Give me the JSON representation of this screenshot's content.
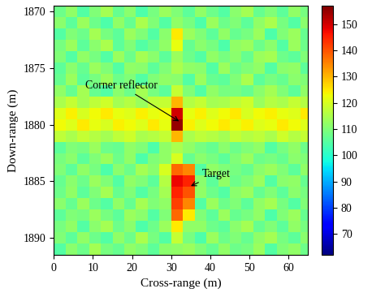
{
  "chart_data": {
    "type": "heatmap",
    "x_label": "Cross-range (m)",
    "y_label": "Down-range (m)",
    "xlim": [
      0,
      65
    ],
    "xticks": [
      0,
      10,
      20,
      30,
      40,
      50,
      60
    ],
    "ylim": [
      1891.5,
      1869.5
    ],
    "yticks": [
      1870,
      1875,
      1880,
      1885,
      1890
    ],
    "x_edges": [
      0,
      3,
      6,
      9,
      12,
      15,
      18,
      21,
      24,
      27,
      30,
      33,
      36,
      39,
      42,
      45,
      48,
      51,
      54,
      57,
      60,
      63,
      66
    ],
    "y_edges": [
      1869.5,
      1870.5,
      1871.5,
      1872.5,
      1873.5,
      1874.5,
      1875.5,
      1876.5,
      1877.5,
      1878.5,
      1879.5,
      1880.5,
      1881.5,
      1882.5,
      1883.5,
      1884.5,
      1885.5,
      1886.5,
      1887.5,
      1888.5,
      1889.5,
      1890.5,
      1891.5
    ],
    "cells": [
      [
        108,
        112,
        105,
        110,
        114,
        107,
        111,
        104,
        109,
        113,
        110,
        106,
        112,
        108,
        105,
        111,
        114,
        107,
        110,
        106,
        112,
        109
      ],
      [
        111,
        106,
        113,
        108,
        104,
        112,
        107,
        115,
        110,
        105,
        112,
        109,
        104,
        113,
        108,
        110,
        106,
        112,
        115,
        109,
        105,
        111
      ],
      [
        105,
        110,
        108,
        114,
        109,
        106,
        113,
        110,
        105,
        111,
        125,
        113,
        110,
        106,
        112,
        107,
        109,
        113,
        104,
        110,
        113,
        107
      ],
      [
        109,
        113,
        106,
        111,
        115,
        106,
        110,
        105,
        108,
        112,
        122,
        107,
        111,
        109,
        104,
        112,
        113,
        108,
        111,
        105,
        113,
        108
      ],
      [
        110,
        105,
        112,
        109,
        105,
        113,
        108,
        114,
        111,
        106,
        113,
        108,
        105,
        112,
        109,
        111,
        107,
        113,
        114,
        108,
        106,
        110
      ],
      [
        106,
        111,
        107,
        113,
        110,
        105,
        112,
        111,
        106,
        110,
        115,
        112,
        111,
        105,
        113,
        108,
        110,
        112,
        105,
        111,
        112,
        106
      ],
      [
        107,
        113,
        106,
        109,
        113,
        108,
        110,
        105,
        110,
        112,
        111,
        105,
        113,
        107,
        106,
        110,
        115,
        106,
        109,
        107,
        111,
        110
      ],
      [
        112,
        107,
        114,
        107,
        105,
        111,
        108,
        114,
        109,
        106,
        118,
        110,
        105,
        112,
        109,
        109,
        107,
        111,
        114,
        110,
        106,
        112
      ],
      [
        115,
        118,
        114,
        117,
        119,
        114,
        116,
        113,
        117,
        118,
        130,
        116,
        118,
        114,
        115,
        117,
        119,
        113,
        116,
        115,
        118,
        116
      ],
      [
        121,
        124,
        120,
        123,
        125,
        122,
        121,
        124,
        122,
        123,
        150,
        122,
        124,
        121,
        123,
        125,
        120,
        123,
        124,
        122,
        121,
        125
      ],
      [
        123,
        121,
        125,
        122,
        120,
        124,
        123,
        121,
        125,
        122,
        155,
        124,
        121,
        123,
        125,
        122,
        124,
        121,
        122,
        125,
        123,
        121
      ],
      [
        117,
        115,
        118,
        116,
        114,
        117,
        119,
        115,
        116,
        118,
        130,
        115,
        117,
        116,
        114,
        118,
        116,
        117,
        115,
        119,
        116,
        118
      ],
      [
        106,
        110,
        109,
        113,
        108,
        107,
        112,
        110,
        104,
        112,
        115,
        112,
        109,
        107,
        111,
        108,
        110,
        112,
        105,
        109,
        112,
        108
      ],
      [
        109,
        111,
        106,
        110,
        113,
        108,
        112,
        104,
        110,
        112,
        120,
        107,
        111,
        109,
        106,
        110,
        113,
        108,
        109,
        107,
        111,
        110
      ],
      [
        110,
        106,
        112,
        109,
        104,
        111,
        108,
        114,
        111,
        120,
        138,
        135,
        105,
        112,
        110,
        109,
        107,
        111,
        113,
        110,
        106,
        112
      ],
      [
        107,
        111,
        108,
        113,
        110,
        105,
        112,
        110,
        106,
        116,
        148,
        145,
        111,
        106,
        112,
        108,
        110,
        113,
        105,
        111,
        112,
        107
      ],
      [
        108,
        112,
        106,
        110,
        114,
        107,
        110,
        105,
        109,
        114,
        145,
        140,
        112,
        108,
        105,
        111,
        113,
        107,
        110,
        106,
        111,
        109
      ],
      [
        111,
        107,
        113,
        108,
        105,
        112,
        107,
        114,
        110,
        112,
        142,
        135,
        105,
        113,
        108,
        110,
        106,
        112,
        114,
        109,
        105,
        110
      ],
      [
        106,
        110,
        109,
        113,
        109,
        106,
        113,
        111,
        105,
        110,
        138,
        125,
        110,
        106,
        113,
        107,
        109,
        112,
        104,
        110,
        113,
        107
      ],
      [
        109,
        112,
        105,
        111,
        114,
        108,
        111,
        104,
        108,
        113,
        125,
        112,
        112,
        108,
        106,
        111,
        114,
        107,
        110,
        106,
        112,
        109
      ],
      [
        110,
        106,
        112,
        108,
        105,
        112,
        108,
        115,
        109,
        105,
        118,
        109,
        104,
        113,
        108,
        110,
        107,
        112,
        114,
        109,
        106,
        111
      ],
      [
        105,
        111,
        108,
        114,
        109,
        107,
        112,
        110,
        106,
        111,
        112,
        113,
        110,
        107,
        112,
        108,
        109,
        113,
        105,
        110,
        112,
        108
      ]
    ],
    "colorbar_range": [
      62,
      157
    ],
    "colorbar_ticks": [
      70,
      80,
      90,
      100,
      110,
      120,
      130,
      140,
      150
    ],
    "annotations": [
      {
        "text": "Corner reflector",
        "xy": [
          32.5,
          1879.8
        ],
        "xytext": [
          8,
          1876.8
        ]
      },
      {
        "text": "Target",
        "xy": [
          34.5,
          1885.5
        ],
        "xytext": [
          38,
          1884.6
        ]
      }
    ]
  }
}
